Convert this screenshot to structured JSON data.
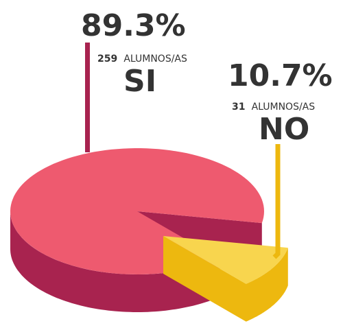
{
  "chart_data": {
    "type": "pie",
    "categories": [
      "SI",
      "NO"
    ],
    "values": [
      89.3,
      10.7
    ],
    "counts": [
      259,
      31
    ],
    "value_labels": [
      "89.3%",
      "10.7%"
    ],
    "count_labels": [
      {
        "number": "259",
        "text": "ALUMNOS/AS"
      },
      {
        "number": "31",
        "text": "ALUMNOS/AS"
      }
    ],
    "colors": {
      "si_top": "#ee5a6f",
      "si_side": "#a8234f",
      "no_top": "#f8d54e",
      "no_side": "#edb80f",
      "si_leader": "#a8234f",
      "no_leader": "#edb80f"
    }
  }
}
